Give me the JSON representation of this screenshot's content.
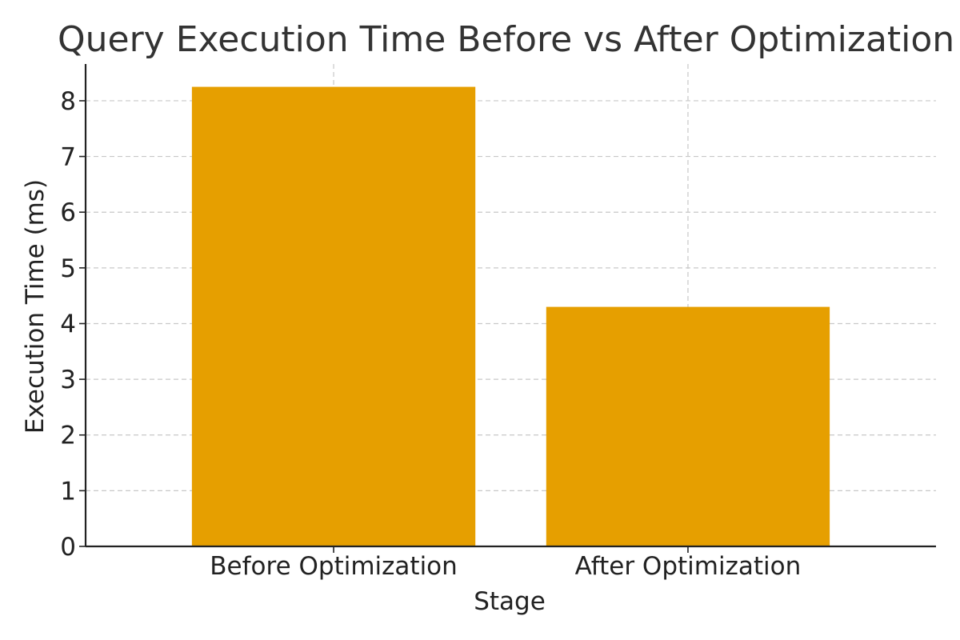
{
  "chart_data": {
    "type": "bar",
    "title": "Query Execution Time Before vs After Optimization",
    "xlabel": "Stage",
    "ylabel": "Execution Time (ms)",
    "categories": [
      "Before Optimization",
      "After Optimization"
    ],
    "values": [
      8.25,
      4.3
    ],
    "ylim": [
      0,
      8.66
    ],
    "yticks": [
      0,
      1,
      2,
      3,
      4,
      5,
      6,
      7,
      8
    ],
    "grid": true,
    "bar_color": "#E69F00",
    "text_color": "#222222",
    "title_color": "#333333"
  }
}
